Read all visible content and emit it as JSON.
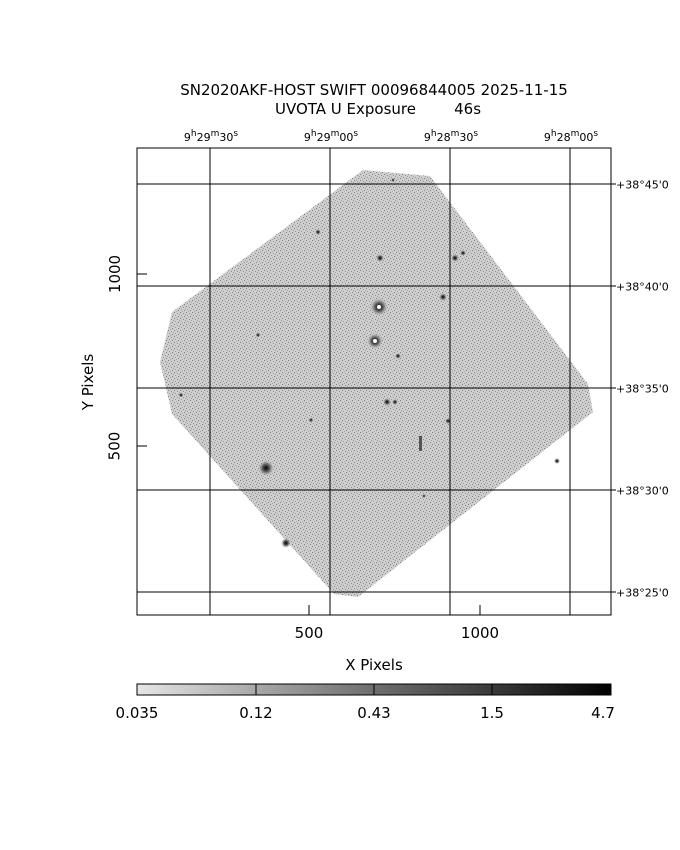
{
  "title": {
    "line1": "SN2020AKF-HOST SWIFT 00096844005 2025-11-15",
    "line2": "UVOTA U Exposure        46s"
  },
  "axes": {
    "xlabel": "X Pixels",
    "ylabel": "Y Pixels",
    "xticks": [
      "500",
      "1000"
    ],
    "yticks": [
      "500",
      "1000"
    ]
  },
  "ra_labels": [
    {
      "h": "9",
      "m": "29",
      "s": "30"
    },
    {
      "h": "9",
      "m": "29",
      "s": "00"
    },
    {
      "h": "9",
      "m": "28",
      "s": "30"
    },
    {
      "h": "9",
      "m": "28",
      "s": "00"
    }
  ],
  "dec_labels": [
    {
      "text": "+38°45'0"
    },
    {
      "text": "+38°40'0"
    },
    {
      "text": "+38°35'0"
    },
    {
      "text": "+38°30'0"
    },
    {
      "text": "+38°25'0"
    }
  ],
  "colorbar": {
    "ticks": [
      "0.035",
      "0.12",
      "0.43",
      "1.5",
      "4.7"
    ],
    "colors": [
      "#e6e6e6",
      "#bdbdbd",
      "#909090",
      "#5a5a5a",
      "#000000"
    ]
  },
  "image_colors": {
    "background": "#ffffff",
    "noise": "#9a9a9a",
    "grid": "#000000"
  }
}
